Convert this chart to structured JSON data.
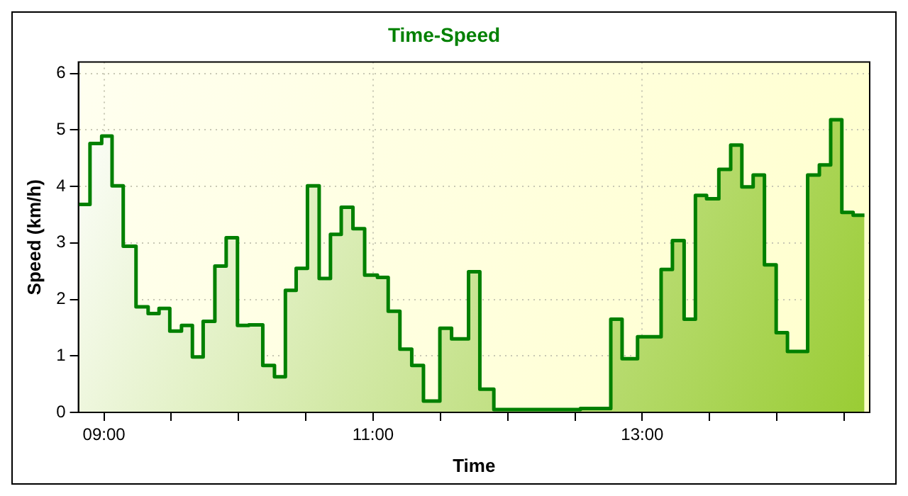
{
  "chart_data": {
    "type": "area",
    "title": "Time-Speed",
    "xlabel": "Time",
    "ylabel": "Speed (km/h)",
    "x": [
      8.815,
      8.896,
      8.896,
      8.983,
      8.983,
      9.06,
      9.06,
      9.143,
      9.143,
      9.238,
      9.238,
      9.328,
      9.328,
      9.409,
      9.409,
      9.489,
      9.489,
      9.576,
      9.576,
      9.657,
      9.657,
      9.737,
      9.737,
      9.824,
      9.824,
      9.908,
      9.908,
      9.992,
      9.992,
      10.076,
      10.076,
      10.18,
      10.18,
      10.267,
      10.267,
      10.348,
      10.348,
      10.428,
      10.428,
      10.512,
      10.512,
      10.599,
      10.599,
      10.683,
      10.683,
      10.763,
      10.763,
      10.85,
      10.85,
      10.937,
      10.937,
      11.032,
      11.032,
      11.112,
      11.112,
      11.199,
      11.199,
      11.287,
      11.287,
      11.374,
      11.374,
      11.496,
      11.496,
      11.583,
      11.583,
      11.709,
      11.709,
      11.793,
      11.793,
      11.897,
      11.897,
      12.54,
      12.54,
      12.766,
      12.766,
      12.85,
      12.85,
      12.965,
      12.965,
      13.14,
      13.14,
      13.224,
      13.224,
      13.311,
      13.311,
      13.395,
      13.395,
      13.478,
      13.478,
      13.569,
      13.569,
      13.657,
      13.657,
      13.74,
      13.74,
      13.824,
      13.824,
      13.908,
      13.908,
      13.995,
      13.995,
      14.079,
      14.079,
      14.229,
      14.229,
      14.316,
      14.316,
      14.4,
      14.4,
      14.483,
      14.483,
      14.567,
      14.567,
      14.651
    ],
    "series": [
      {
        "color": "#008000",
        "values": [
          3.68,
          3.68,
          4.76,
          4.76,
          4.89,
          4.89,
          4.01,
          4.01,
          2.94,
          2.94,
          1.87,
          1.87,
          1.75,
          1.75,
          1.84,
          1.84,
          1.44,
          1.44,
          1.54,
          1.54,
          0.98,
          0.98,
          1.61,
          1.61,
          2.59,
          2.59,
          3.09,
          3.09,
          1.54,
          1.54,
          1.55,
          1.55,
          0.83,
          0.83,
          0.63,
          0.63,
          2.16,
          2.16,
          2.55,
          2.55,
          4.01,
          4.01,
          2.37,
          2.37,
          3.15,
          3.15,
          3.63,
          3.63,
          3.25,
          3.25,
          2.43,
          2.43,
          2.39,
          2.39,
          1.79,
          1.79,
          1.12,
          1.12,
          0.83,
          0.83,
          0.2,
          0.2,
          1.49,
          1.49,
          1.3,
          1.3,
          2.49,
          2.49,
          0.41,
          0.41,
          0.05,
          0.05,
          0.07,
          0.07,
          1.65,
          1.65,
          0.95,
          0.95,
          1.34,
          1.34,
          2.53,
          2.53,
          3.04,
          3.04,
          1.65,
          1.65,
          3.84,
          3.84,
          3.78,
          3.78,
          4.3,
          4.3,
          4.73,
          4.73,
          3.99,
          3.99,
          4.2,
          4.2,
          2.61,
          2.61,
          1.41,
          1.41,
          1.08,
          1.08,
          4.2,
          4.2,
          4.38,
          4.38,
          5.18,
          5.18,
          3.54,
          3.54,
          3.49,
          3.49
        ]
      }
    ],
    "xlim": [
      8.81,
      14.69
    ],
    "xticks": [
      {
        "value": 9,
        "label": "09:00"
      },
      {
        "value": 9.5,
        "label": null
      },
      {
        "value": 10,
        "label": null
      },
      {
        "value": 10.5,
        "label": null
      },
      {
        "value": 11,
        "label": "11:00"
      },
      {
        "value": 11.5,
        "label": null
      },
      {
        "value": 12,
        "label": null
      },
      {
        "value": 12.5,
        "label": null
      },
      {
        "value": 13,
        "label": "13:00"
      },
      {
        "value": 13.5,
        "label": null
      },
      {
        "value": 14,
        "label": null
      },
      {
        "value": 14.5,
        "label": null
      }
    ],
    "ylim": [
      0,
      6.2
    ],
    "yticks": [
      0,
      1,
      2,
      3,
      4,
      5,
      6
    ],
    "grid": true,
    "legend": false,
    "marker": "none",
    "line_style": "solid"
  }
}
